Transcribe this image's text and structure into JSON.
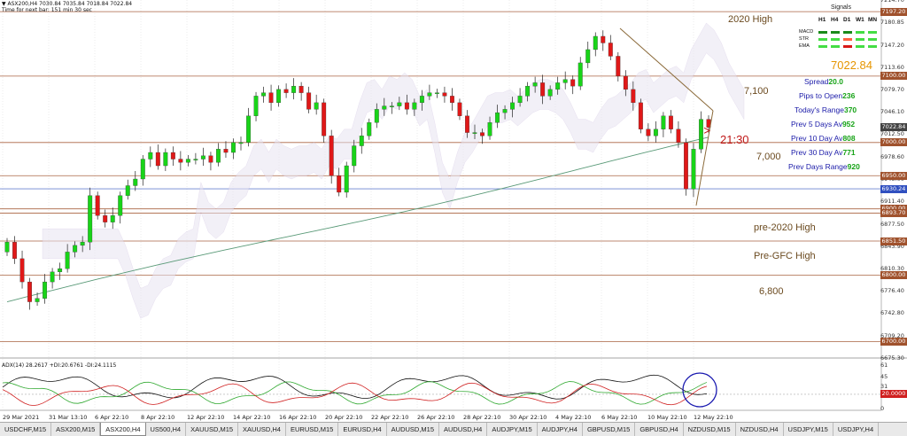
{
  "header": {
    "symbol_line": "▼ ASX200,H4  7030.84 7035.84 7018.84 7022.84",
    "timer_line": "Time for next bar: 151 min 30 sec"
  },
  "price_axis": {
    "labels": [
      "7214.70",
      "7180.85",
      "7147.20",
      "7113.60",
      "7079.70",
      "7046.10",
      "7012.50",
      "6978.60",
      "6945.00",
      "6911.40",
      "6877.50",
      "6843.90",
      "6810.30",
      "6776.40",
      "6742.80",
      "6709.20",
      "6675.30"
    ],
    "boxes": [
      {
        "label": "7197.20",
        "color": "#a0522d"
      },
      {
        "label": "7100.00",
        "color": "#a0522d"
      },
      {
        "label": "7022.84",
        "color": "#444444"
      },
      {
        "label": "7000.00",
        "color": "#a0522d"
      },
      {
        "label": "6950.00",
        "color": "#a0522d"
      },
      {
        "label": "6930.24",
        "color": "#3050c0"
      },
      {
        "label": "6900.00",
        "color": "#a0522d"
      },
      {
        "label": "6893.70",
        "color": "#a0522d"
      },
      {
        "label": "6851.50",
        "color": "#a0522d"
      },
      {
        "label": "6800.00",
        "color": "#a0522d"
      },
      {
        "label": "6700.00",
        "color": "#a0522d"
      }
    ]
  },
  "annotations": {
    "high_2020": "2020 High",
    "level_7100": "7,100",
    "time_2130": "21:30",
    "level_7000": "7,000",
    "pre_2020": "pre-2020 High",
    "pre_gfc": "Pre-GFC High",
    "level_6800": "6,800"
  },
  "signals": {
    "title": "Signals",
    "columns": [
      "H1",
      "H4",
      "D1",
      "W1",
      "MN"
    ],
    "rows": [
      {
        "name": "MACD",
        "colors": [
          "#1a8a1a",
          "#1a8a1a",
          "#1a8a1a",
          "#44dd44",
          "#44dd44"
        ]
      },
      {
        "name": "STR",
        "colors": [
          "#44dd44",
          "#44dd44",
          "#ff6040",
          "#44dd44",
          "#44dd44"
        ]
      },
      {
        "name": "EMA",
        "colors": [
          "#44dd44",
          "#44dd44",
          "#d81818",
          "#44dd44",
          "#44dd44"
        ]
      }
    ]
  },
  "info": {
    "price": "7022.84",
    "rows": [
      {
        "label": "Spread",
        "value": "20.0"
      },
      {
        "label": "Pips to Open",
        "value": "236"
      },
      {
        "label": "Today's Range",
        "value": "370"
      },
      {
        "label": "Prev 5 Days Av",
        "value": "952"
      },
      {
        "label": "Prev 10 Day Av",
        "value": "808"
      },
      {
        "label": "Prev 30 Day Av",
        "value": "771"
      },
      {
        "label": "Prev Days Range",
        "value": "920"
      }
    ]
  },
  "adx": {
    "header": "ADX(14) 28.2617 +DI:20.6761 -DI:24.1115",
    "labels": [
      "61",
      "45",
      "31",
      "20",
      "0"
    ],
    "level_box": "20.0000"
  },
  "dates": [
    "29 Mar 2021",
    "31 Mar 13:10",
    "6 Apr 22:10",
    "8 Apr 22:10",
    "12 Apr 22:10",
    "14 Apr 22:10",
    "16 Apr 22:10",
    "20 Apr 22:10",
    "22 Apr 22:10",
    "26 Apr 22:10",
    "28 Apr 22:10",
    "30 Apr 22:10",
    "4 May 22:10",
    "6 May 22:10",
    "10 May 22:10",
    "12 May 22:10"
  ],
  "tabs": [
    {
      "label": "USDCHF,M15",
      "active": false
    },
    {
      "label": "ASX200,M15",
      "active": false
    },
    {
      "label": "ASX200,H4",
      "active": true
    },
    {
      "label": "US500,H4",
      "active": false
    },
    {
      "label": "XAUUSD,M15",
      "active": false
    },
    {
      "label": "XAUUSD,H4",
      "active": false
    },
    {
      "label": "EURUSD,M15",
      "active": false
    },
    {
      "label": "EURUSD,H4",
      "active": false
    },
    {
      "label": "AUDUSD,M15",
      "active": false
    },
    {
      "label": "AUDUSD,H4",
      "active": false
    },
    {
      "label": "AUDJPY,M15",
      "active": false
    },
    {
      "label": "AUDJPY,H4",
      "active": false
    },
    {
      "label": "GBPUSD,M15",
      "active": false
    },
    {
      "label": "GBPUSD,H4",
      "active": false
    },
    {
      "label": "NZDUSD,M15",
      "active": false
    },
    {
      "label": "NZDUSD,H4",
      "active": false
    },
    {
      "label": "USDJPY,M15",
      "active": false
    },
    {
      "label": "USDJPY,H4",
      "active": false
    }
  ],
  "chart_data": {
    "type": "candlestick",
    "symbol": "ASX200",
    "timeframe": "H4",
    "last_price": 7022.84,
    "y_range": [
      6675.3,
      7214.7
    ],
    "horizontal_levels": [
      7197.2,
      7100,
      7000,
      6950,
      6930.24,
      6900,
      6893.7,
      6851.5,
      6800,
      6700
    ],
    "closes": [
      6850,
      6825,
      6790,
      6760,
      6765,
      6790,
      6805,
      6810,
      6835,
      6845,
      6850,
      6920,
      6890,
      6880,
      6890,
      6920,
      6935,
      6945,
      6975,
      6985,
      6965,
      6985,
      6975,
      6970,
      6975,
      6975,
      6980,
      6970,
      6990,
      6985,
      7000,
      7000,
      7040,
      7070,
      7075,
      7060,
      7080,
      7075,
      7085,
      7075,
      7050,
      7060,
      7010,
      6950,
      6925,
      6965,
      6995,
      7010,
      7030,
      7050,
      7055,
      7055,
      7060,
      7050,
      7060,
      7070,
      7075,
      7075,
      7070,
      7060,
      7040,
      7015,
      7015,
      7010,
      7030,
      7045,
      7050,
      7060,
      7070,
      7085,
      7090,
      7070,
      7080,
      7090,
      7095,
      7085,
      7120,
      7140,
      7160,
      7150,
      7130,
      7100,
      7080,
      7060,
      7020,
      7010,
      7020,
      7040,
      7020,
      7000,
      6930,
      6990,
      7035,
      7022.84
    ],
    "adx": {
      "ylim": [
        0,
        61
      ],
      "last": {
        "adx": 28.2617,
        "plus_di": 20.6761,
        "minus_di": 24.1115
      }
    }
  }
}
